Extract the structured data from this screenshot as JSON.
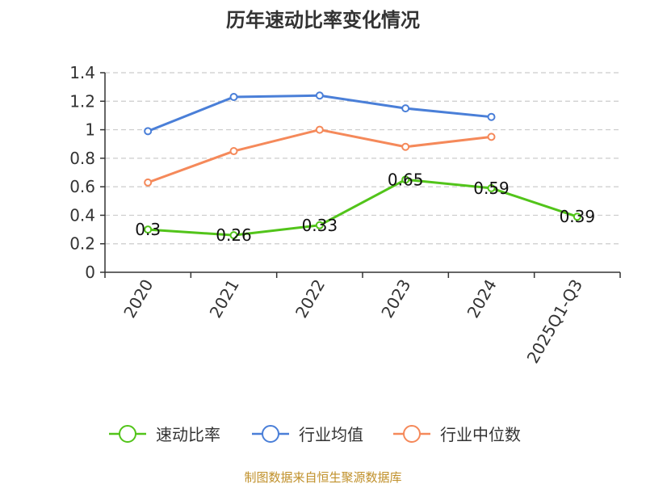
{
  "chart_data": {
    "type": "line",
    "title": "历年速动比率变化情况",
    "xlabel": "",
    "ylabel": "",
    "categories": [
      "2020",
      "2021",
      "2022",
      "2023",
      "2024",
      "2025Q1-Q3"
    ],
    "ylim": [
      0,
      1.4
    ],
    "yticks": [
      "0",
      "0.2",
      "0.4",
      "0.6",
      "0.8",
      "1",
      "1.2",
      "1.4"
    ],
    "grid": true,
    "legend_position": "bottom",
    "series": [
      {
        "name": "速动比率",
        "color": "#52c41a",
        "values": [
          0.3,
          0.26,
          0.33,
          0.65,
          0.59,
          0.39
        ],
        "labels": [
          "0.3",
          "0.26",
          "0.33",
          "0.65",
          "0.59",
          "0.39"
        ]
      },
      {
        "name": "行业均值",
        "color": "#4a7fd8",
        "values": [
          0.99,
          1.23,
          1.24,
          1.15,
          1.09,
          null
        ],
        "labels": []
      },
      {
        "name": "行业中位数",
        "color": "#f5895a",
        "values": [
          0.63,
          0.85,
          1.0,
          0.88,
          0.95,
          null
        ],
        "labels": []
      }
    ]
  },
  "footer": {
    "source": "制图数据来自恒生聚源数据库"
  }
}
